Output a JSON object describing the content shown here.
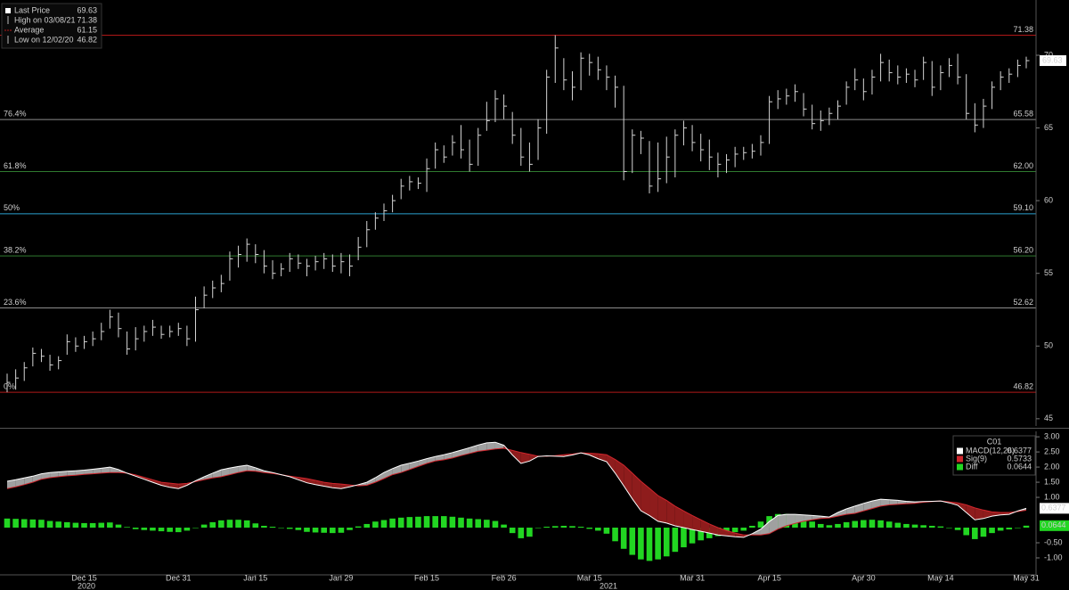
{
  "chart_data": [
    {
      "type": "hlc",
      "legend": {
        "last_label": "Last Price",
        "high_label": "High on 03/08/21",
        "average_label": "Average",
        "average": 61.15,
        "low_label": "Low on 12/02/20"
      },
      "color": "#d4d4d4",
      "ylim": [
        44.5,
        73.8
      ],
      "yticks": [
        45,
        50,
        55,
        60,
        65,
        70
      ],
      "levels": [
        {
          "value": 71.38,
          "color": "#b01818"
        },
        {
          "name": "76.4%",
          "value": 65.58,
          "color": "#8c8c8c"
        },
        {
          "name": "61.8%",
          "value": 62,
          "label": "62.00",
          "color": "#2f7a2f"
        },
        {
          "name": "50%",
          "value": 59.1,
          "label": "59.10",
          "color": "#2a9fd0"
        },
        {
          "name": "38.2%",
          "value": 56.2,
          "label": "56.20",
          "color": "#2f7a2f"
        },
        {
          "name": "23.6%",
          "value": 52.62,
          "color": "#8c8c8c"
        },
        {
          "name": "0%",
          "value": 46.82,
          "color": "#b01818"
        }
      ],
      "high": [
        48.1,
        48.4,
        48.9,
        49.9,
        49.8,
        49.4,
        49.3,
        50.8,
        50.6,
        50.7,
        51.0,
        51.6,
        52.5,
        52.3,
        51.0,
        51.3,
        51.4,
        51.8,
        51.4,
        51.4,
        51.6,
        51.4,
        53.4,
        54.1,
        54.5,
        54.9,
        56.5,
        56.9,
        57.4,
        57.0,
        56.6,
        55.9,
        55.7,
        56.4,
        56.3,
        56.0,
        56.2,
        56.4,
        56.3,
        56.4,
        56.3,
        57.5,
        58.6,
        59.2,
        59.8,
        60.4,
        61.5,
        61.7,
        61.6,
        62.9,
        64.0,
        63.8,
        64.5,
        65.2,
        64.2,
        65.0,
        66.8,
        67.6,
        67.3,
        66.1,
        65.0,
        64.0,
        65.6,
        69.0,
        71.38,
        69.8,
        68.9,
        70.2,
        70.1,
        69.9,
        69.3,
        68.6,
        67.9,
        64.9,
        64.8,
        64.1,
        64.0,
        64.4,
        64.9,
        65.5,
        65.2,
        64.6,
        64.2,
        63.3,
        63.2,
        63.7,
        63.7,
        63.9,
        64.5,
        67.2,
        67.6,
        67.7,
        68.0,
        67.4,
        66.6,
        66.2,
        66.4,
        66.9,
        68.2,
        69.1,
        68.4,
        69.0,
        70.1,
        69.7,
        69.3,
        69.1,
        69.0,
        69.9,
        69.6,
        69.3,
        69.8,
        70.1,
        68.7,
        66.7,
        67.0,
        68.2,
        68.9,
        69.1,
        69.7,
        69.9
      ],
      "low": [
        46.82,
        47.0,
        47.6,
        48.6,
        48.9,
        48.3,
        48.4,
        49.4,
        49.6,
        49.8,
        50.0,
        50.4,
        51.2,
        50.6,
        49.4,
        49.7,
        50.3,
        50.7,
        50.5,
        50.6,
        50.7,
        50.0,
        50.3,
        52.6,
        53.3,
        53.7,
        54.5,
        55.4,
        55.8,
        55.7,
        55.0,
        54.6,
        54.8,
        55.1,
        55.3,
        54.8,
        55.2,
        55.3,
        55.1,
        55.0,
        54.8,
        55.9,
        56.8,
        58.0,
        58.6,
        59.2,
        60.1,
        60.7,
        60.8,
        60.6,
        62.2,
        62.6,
        63.1,
        62.9,
        62.0,
        62.4,
        64.8,
        65.4,
        65.6,
        63.9,
        62.4,
        62.0,
        62.8,
        64.6,
        68.1,
        67.6,
        66.9,
        67.6,
        68.6,
        68.3,
        67.6,
        66.4,
        61.4,
        61.9,
        63.2,
        60.5,
        60.6,
        61.2,
        61.6,
        63.8,
        63.4,
        62.7,
        62.1,
        61.6,
        61.9,
        62.3,
        62.8,
        62.9,
        63.1,
        63.9,
        66.3,
        66.6,
        66.8,
        65.8,
        64.9,
        64.8,
        65.2,
        65.6,
        66.6,
        67.6,
        66.9,
        67.3,
        68.2,
        68.2,
        68.0,
        68.1,
        67.8,
        68.3,
        67.2,
        67.6,
        68.5,
        68.0,
        65.6,
        64.7,
        65.0,
        66.3,
        67.6,
        68.1,
        68.5,
        69.1
      ],
      "close": [
        47.5,
        47.8,
        48.5,
        49.5,
        49.3,
        48.7,
        49.0,
        50.3,
        50.0,
        50.3,
        50.5,
        51.0,
        52.0,
        51.2,
        49.8,
        50.5,
        51.0,
        51.3,
        50.8,
        51.0,
        51.2,
        50.5,
        52.5,
        53.5,
        54.0,
        54.3,
        56.0,
        56.3,
        57.0,
        56.3,
        55.5,
        55.0,
        55.3,
        56.0,
        55.7,
        55.5,
        55.8,
        56.0,
        55.5,
        55.8,
        55.5,
        56.8,
        58.0,
        58.8,
        59.3,
        60.0,
        61.0,
        61.3,
        61.2,
        62.2,
        63.5,
        63.0,
        64.0,
        63.5,
        62.5,
        64.5,
        65.5,
        67.0,
        66.5,
        64.5,
        63.0,
        62.5,
        65.0,
        68.5,
        70.5,
        68.3,
        67.8,
        69.8,
        69.5,
        69.0,
        68.5,
        67.8,
        62.0,
        64.5,
        64.3,
        61.0,
        61.5,
        63.0,
        64.5,
        65.0,
        64.0,
        63.5,
        63.0,
        62.5,
        62.8,
        63.2,
        63.3,
        63.4,
        64.0,
        66.8,
        67.0,
        67.2,
        67.5,
        66.3,
        65.3,
        65.5,
        66.0,
        66.5,
        67.8,
        68.3,
        67.5,
        68.5,
        69.5,
        68.8,
        68.5,
        68.7,
        68.3,
        69.5,
        67.8,
        68.8,
        69.3,
        68.5,
        66.0,
        65.2,
        66.5,
        67.8,
        68.5,
        68.7,
        69.3,
        69.63
      ]
    },
    {
      "type": "macd",
      "title": "C01",
      "categories": [
        null,
        null,
        null,
        null,
        null,
        null,
        null,
        null,
        null,
        "Dec 15",
        null,
        null,
        null,
        null,
        null,
        null,
        null,
        null,
        null,
        null,
        "Dec 31",
        null,
        null,
        null,
        null,
        null,
        null,
        null,
        null,
        "Jan 15",
        null,
        null,
        null,
        null,
        null,
        null,
        null,
        null,
        null,
        "Jan 29",
        null,
        null,
        null,
        null,
        null,
        null,
        null,
        null,
        null,
        "Feb 15",
        null,
        null,
        null,
        null,
        null,
        null,
        null,
        null,
        "Feb 26",
        null,
        null,
        null,
        null,
        null,
        null,
        null,
        null,
        null,
        "Mar 15",
        null,
        null,
        null,
        null,
        null,
        null,
        null,
        null,
        null,
        null,
        null,
        "Mar 31",
        null,
        null,
        null,
        null,
        null,
        null,
        null,
        null,
        "Apr 15",
        null,
        null,
        null,
        null,
        null,
        null,
        null,
        null,
        null,
        null,
        "Apr 30",
        null,
        null,
        null,
        null,
        null,
        null,
        null,
        null,
        "May 14",
        null,
        null,
        null,
        null,
        null,
        null,
        null,
        null,
        null,
        "May 31"
      ],
      "period_labels": [
        "2020",
        "2021"
      ],
      "ylim": [
        -1.56,
        3.18
      ],
      "yticks": [
        {
          "value": 3,
          "label": "3.00"
        },
        {
          "value": 2.5,
          "label": "2.50"
        },
        {
          "value": 2,
          "label": "2.00"
        },
        {
          "value": 1.5,
          "label": "1.50"
        },
        {
          "value": 1,
          "label": "1.00"
        },
        {
          "value": -0.5,
          "label": "-0.50"
        },
        {
          "value": -1,
          "label": "-1.00"
        }
      ],
      "band_up_color": "#a0a0a0",
      "band_down_color": "#8e1c1c",
      "series": [
        {
          "name": "MACD(12,26)",
          "color": "#ffffff",
          "values": [
            1.53,
            1.58,
            1.64,
            1.7,
            1.78,
            1.82,
            1.84,
            1.86,
            1.88,
            1.9,
            1.93,
            1.96,
            2.0,
            1.92,
            1.8,
            1.7,
            1.6,
            1.5,
            1.4,
            1.33,
            1.29,
            1.4,
            1.55,
            1.68,
            1.8,
            1.91,
            1.97,
            2.02,
            2.06,
            1.98,
            1.88,
            1.82,
            1.75,
            1.68,
            1.58,
            1.48,
            1.42,
            1.37,
            1.32,
            1.29,
            1.35,
            1.42,
            1.5,
            1.65,
            1.82,
            1.95,
            2.06,
            2.13,
            2.2,
            2.28,
            2.35,
            2.41,
            2.48,
            2.56,
            2.64,
            2.73,
            2.8,
            2.82,
            2.72,
            2.4,
            2.12,
            2.2,
            2.35,
            2.37,
            2.36,
            2.35,
            2.4,
            2.47,
            2.4,
            2.28,
            2.18,
            1.8,
            1.38,
            0.95,
            0.56,
            0.4,
            0.21,
            0.15,
            0.06,
            0.0,
            -0.06,
            -0.12,
            -0.18,
            -0.24,
            -0.27,
            -0.3,
            -0.32,
            -0.2,
            -0.05,
            0.2,
            0.4,
            0.44,
            0.44,
            0.42,
            0.4,
            0.38,
            0.35,
            0.5,
            0.62,
            0.71,
            0.8,
            0.88,
            0.94,
            0.92,
            0.9,
            0.87,
            0.85,
            0.86,
            0.87,
            0.88,
            0.82,
            0.74,
            0.5,
            0.26,
            0.3,
            0.38,
            0.42,
            0.44,
            0.55,
            0.6377
          ]
        },
        {
          "name": "Sig(9)",
          "color": "#d0262d",
          "values": [
            1.29,
            1.35,
            1.42,
            1.5,
            1.6,
            1.65,
            1.68,
            1.71,
            1.73,
            1.76,
            1.78,
            1.8,
            1.82,
            1.82,
            1.8,
            1.74,
            1.66,
            1.58,
            1.5,
            1.47,
            1.44,
            1.46,
            1.52,
            1.58,
            1.64,
            1.68,
            1.75,
            1.82,
            1.88,
            1.86,
            1.82,
            1.79,
            1.75,
            1.7,
            1.66,
            1.62,
            1.56,
            1.5,
            1.46,
            1.44,
            1.41,
            1.38,
            1.4,
            1.5,
            1.62,
            1.75,
            1.82,
            1.92,
            2.02,
            2.12,
            2.2,
            2.24,
            2.3,
            2.38,
            2.45,
            2.52,
            2.56,
            2.6,
            2.62,
            2.55,
            2.48,
            2.42,
            2.36,
            2.36,
            2.38,
            2.41,
            2.43,
            2.47,
            2.46,
            2.44,
            2.41,
            2.25,
            2.06,
            1.8,
            1.53,
            1.3,
            1.06,
            0.9,
            0.71,
            0.55,
            0.4,
            0.26,
            0.12,
            0.0,
            -0.1,
            -0.18,
            -0.24,
            -0.24,
            -0.24,
            -0.2,
            -0.05,
            0.06,
            0.14,
            0.21,
            0.26,
            0.3,
            0.32,
            0.38,
            0.44,
            0.47,
            0.55,
            0.63,
            0.71,
            0.75,
            0.77,
            0.79,
            0.8,
            0.84,
            0.86,
            0.88,
            0.85,
            0.82,
            0.75,
            0.65,
            0.58,
            0.52,
            0.5,
            0.5,
            0.53,
            0.5733
          ]
        },
        {
          "name": "Diff",
          "color": "#22d622",
          "values": [
            0.3,
            0.29,
            0.28,
            0.27,
            0.26,
            0.22,
            0.2,
            0.18,
            0.16,
            0.15,
            0.15,
            0.16,
            0.17,
            0.1,
            0.02,
            -0.05,
            -0.08,
            -0.1,
            -0.12,
            -0.14,
            -0.15,
            -0.1,
            0.0,
            0.1,
            0.18,
            0.24,
            0.26,
            0.26,
            0.24,
            0.14,
            0.06,
            0.03,
            0.0,
            -0.04,
            -0.08,
            -0.14,
            -0.16,
            -0.17,
            -0.18,
            -0.17,
            -0.08,
            0.04,
            0.12,
            0.2,
            0.25,
            0.3,
            0.33,
            0.35,
            0.36,
            0.38,
            0.38,
            0.38,
            0.36,
            0.33,
            0.3,
            0.28,
            0.26,
            0.22,
            0.1,
            -0.18,
            -0.35,
            -0.3,
            0.0,
            0.03,
            0.05,
            0.06,
            0.05,
            0.03,
            -0.04,
            -0.1,
            -0.2,
            -0.45,
            -0.7,
            -0.9,
            -1.05,
            -1.1,
            -1.05,
            -0.95,
            -0.8,
            -0.65,
            -0.52,
            -0.42,
            -0.35,
            -0.28,
            -0.22,
            -0.15,
            -0.1,
            0.06,
            0.2,
            0.38,
            0.45,
            0.45,
            0.42,
            0.3,
            0.2,
            0.12,
            0.08,
            0.12,
            0.18,
            0.22,
            0.25,
            0.26,
            0.24,
            0.2,
            0.16,
            0.12,
            0.1,
            0.08,
            0.06,
            0.04,
            0.0,
            -0.08,
            -0.25,
            -0.38,
            -0.3,
            -0.18,
            -0.1,
            -0.06,
            0.0,
            0.0644
          ]
        }
      ]
    }
  ]
}
